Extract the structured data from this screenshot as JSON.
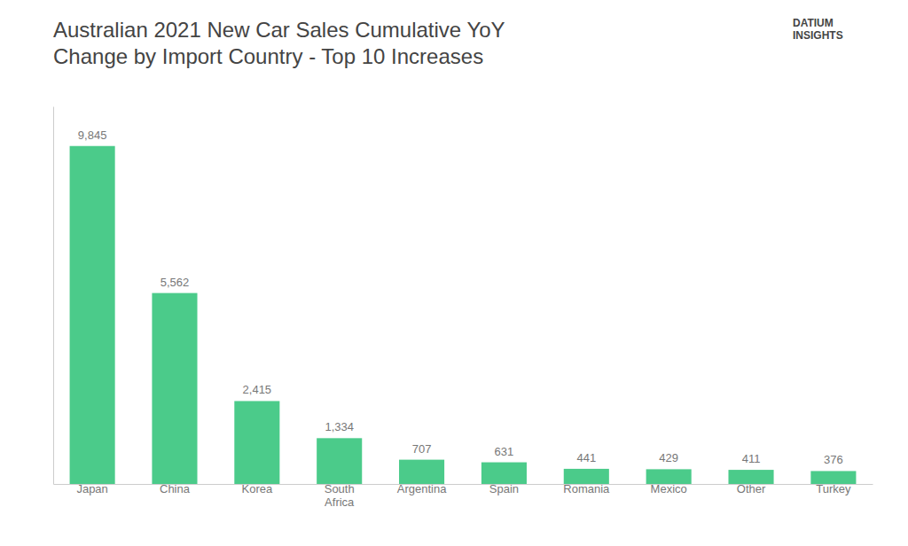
{
  "chart_data": {
    "type": "bar",
    "title": "Australian 2021 New Car Sales Cumulative YoY\nChange by Import Country - Top 10 Increases",
    "categories": [
      "Japan",
      "China",
      "Korea",
      "South\nAfrica",
      "Argentina",
      "Spain",
      "Romania",
      "Mexico",
      "Other",
      "Turkey"
    ],
    "values": [
      9845,
      5562,
      2415,
      1334,
      707,
      631,
      441,
      429,
      411,
      376
    ],
    "value_labels": [
      "9,845",
      "5,562",
      "2,415",
      "1,334",
      "707",
      "631",
      "441",
      "429",
      "411",
      "376"
    ],
    "data_labels": true,
    "color": "#4BCB8A",
    "ylim": [
      0,
      11000
    ],
    "tick_labels": "x",
    "grid": false,
    "annotations": [
      "DATIUM\nINSIGHTS"
    ]
  }
}
